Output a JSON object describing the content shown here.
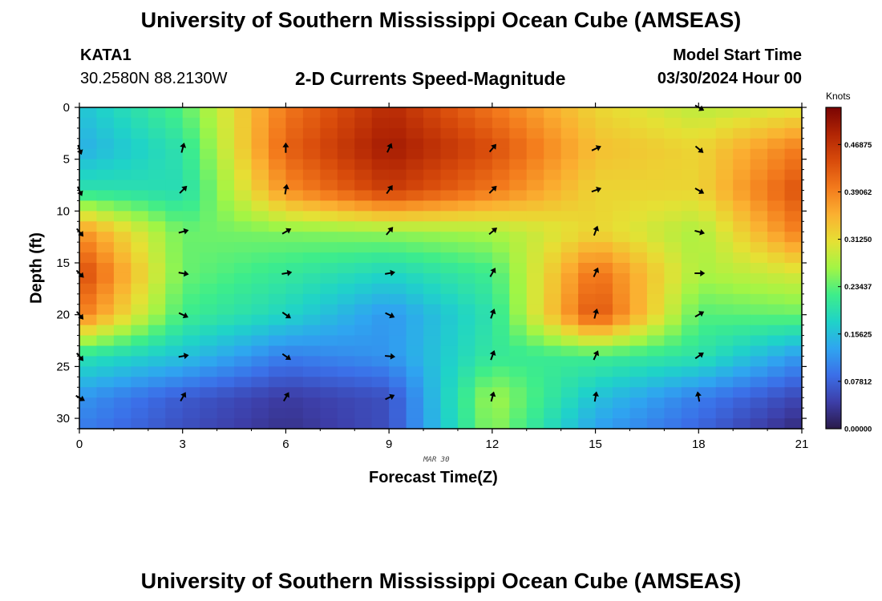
{
  "header": {
    "title": "University of Southern Mississippi Ocean Cube (AMSEAS)",
    "station": "KATA1",
    "coords": "30.2580N  88.2130W",
    "plot_title": "2-D Currents Speed-Magnitude",
    "start_label": "Model Start Time",
    "start_value": "03/30/2024 Hour 00"
  },
  "footer": {
    "title": "University of Southern Mississippi Ocean Cube (AMSEAS)"
  },
  "chart_data": {
    "type": "heatmap",
    "title": "2-D Currents Speed-Magnitude",
    "xlabel": "Forecast Time(Z)",
    "ylabel": "Depth (ft)",
    "date_marker": "MAR 30",
    "xlim": [
      0,
      21
    ],
    "ylim": [
      0,
      31
    ],
    "y_inverted": true,
    "x_ticks": [
      "0",
      "3",
      "6",
      "9",
      "12",
      "15",
      "18",
      "21"
    ],
    "y_ticks": [
      "0",
      "5",
      "10",
      "15",
      "20",
      "25",
      "30"
    ],
    "colorbar": {
      "label": "Knots",
      "ticks": [
        "0.00000",
        "0.07812",
        "0.15625",
        "0.23437",
        "0.31250",
        "0.39062",
        "0.46875"
      ],
      "range": [
        0,
        0.53
      ],
      "colors": [
        "#2a1a4a",
        "#3d3ea8",
        "#3b6fe8",
        "#2fa5f0",
        "#1fd3c8",
        "#3eed8a",
        "#a2f545",
        "#e6e034",
        "#fbb031",
        "#f37a1c",
        "#d84b0b",
        "#b12504",
        "#7a0403"
      ]
    },
    "speed_anchor_hours": [
      0,
      3,
      6,
      9,
      12,
      15,
      18,
      21
    ],
    "speed_anchor_depths": [
      0,
      4,
      8,
      12,
      16,
      20,
      24,
      28,
      31
    ],
    "speed_knots": [
      [
        0.16,
        0.23,
        0.4,
        0.48,
        0.4,
        0.32,
        0.28,
        0.3
      ],
      [
        0.14,
        0.2,
        0.42,
        0.5,
        0.44,
        0.34,
        0.32,
        0.4
      ],
      [
        0.2,
        0.19,
        0.38,
        0.46,
        0.4,
        0.32,
        0.32,
        0.44
      ],
      [
        0.38,
        0.24,
        0.25,
        0.26,
        0.27,
        0.32,
        0.27,
        0.4
      ],
      [
        0.45,
        0.24,
        0.21,
        0.18,
        0.22,
        0.41,
        0.27,
        0.3
      ],
      [
        0.4,
        0.22,
        0.18,
        0.12,
        0.2,
        0.44,
        0.23,
        0.24
      ],
      [
        0.2,
        0.16,
        0.1,
        0.12,
        0.21,
        0.22,
        0.2,
        0.12
      ],
      [
        0.12,
        0.07,
        0.04,
        0.06,
        0.27,
        0.16,
        0.1,
        0.05
      ],
      [
        0.1,
        0.06,
        0.03,
        0.06,
        0.26,
        0.13,
        0.08,
        0.02
      ]
    ],
    "vectors": [
      {
        "t": 0,
        "d": 4,
        "dir": 160
      },
      {
        "t": 0,
        "d": 8,
        "dir": 155
      },
      {
        "t": 0,
        "d": 12,
        "dir": 140
      },
      {
        "t": 0,
        "d": 16,
        "dir": 135
      },
      {
        "t": 0,
        "d": 20,
        "dir": 140
      },
      {
        "t": 0,
        "d": 24,
        "dir": 140
      },
      {
        "t": 0,
        "d": 28,
        "dir": 120
      },
      {
        "t": 3,
        "d": 4,
        "dir": 15
      },
      {
        "t": 3,
        "d": 8,
        "dir": 45
      },
      {
        "t": 3,
        "d": 12,
        "dir": 75
      },
      {
        "t": 3,
        "d": 16,
        "dir": 100
      },
      {
        "t": 3,
        "d": 20,
        "dir": 115
      },
      {
        "t": 3,
        "d": 24,
        "dir": 80
      },
      {
        "t": 3,
        "d": 28,
        "dir": 30
      },
      {
        "t": 6,
        "d": 4,
        "dir": 0
      },
      {
        "t": 6,
        "d": 8,
        "dir": 10
      },
      {
        "t": 6,
        "d": 12,
        "dir": 60
      },
      {
        "t": 6,
        "d": 16,
        "dir": 80
      },
      {
        "t": 6,
        "d": 20,
        "dir": 125
      },
      {
        "t": 6,
        "d": 24,
        "dir": 125
      },
      {
        "t": 6,
        "d": 28,
        "dir": 30
      },
      {
        "t": 9,
        "d": 4,
        "dir": 25
      },
      {
        "t": 9,
        "d": 8,
        "dir": 35
      },
      {
        "t": 9,
        "d": 12,
        "dir": 40
      },
      {
        "t": 9,
        "d": 16,
        "dir": 80
      },
      {
        "t": 9,
        "d": 20,
        "dir": 115
      },
      {
        "t": 9,
        "d": 24,
        "dir": 95
      },
      {
        "t": 9,
        "d": 28,
        "dir": 65
      },
      {
        "t": 12,
        "d": 4,
        "dir": 40
      },
      {
        "t": 12,
        "d": 8,
        "dir": 45
      },
      {
        "t": 12,
        "d": 12,
        "dir": 50
      },
      {
        "t": 12,
        "d": 16,
        "dir": 30
      },
      {
        "t": 12,
        "d": 20,
        "dir": 20
      },
      {
        "t": 12,
        "d": 24,
        "dir": 20
      },
      {
        "t": 12,
        "d": 28,
        "dir": 15
      },
      {
        "t": 15,
        "d": 4,
        "dir": 65
      },
      {
        "t": 15,
        "d": 8,
        "dir": 70
      },
      {
        "t": 15,
        "d": 12,
        "dir": 20
      },
      {
        "t": 15,
        "d": 16,
        "dir": 25
      },
      {
        "t": 15,
        "d": 20,
        "dir": 15
      },
      {
        "t": 15,
        "d": 24,
        "dir": 25
      },
      {
        "t": 15,
        "d": 28,
        "dir": 10
      },
      {
        "t": 18,
        "d": 0,
        "dir": 120
      },
      {
        "t": 18,
        "d": 4,
        "dir": 130
      },
      {
        "t": 18,
        "d": 8,
        "dir": 120
      },
      {
        "t": 18,
        "d": 12,
        "dir": 105
      },
      {
        "t": 18,
        "d": 16,
        "dir": 90
      },
      {
        "t": 18,
        "d": 20,
        "dir": 60
      },
      {
        "t": 18,
        "d": 24,
        "dir": 55
      },
      {
        "t": 18,
        "d": 28,
        "dir": 350
      }
    ]
  }
}
